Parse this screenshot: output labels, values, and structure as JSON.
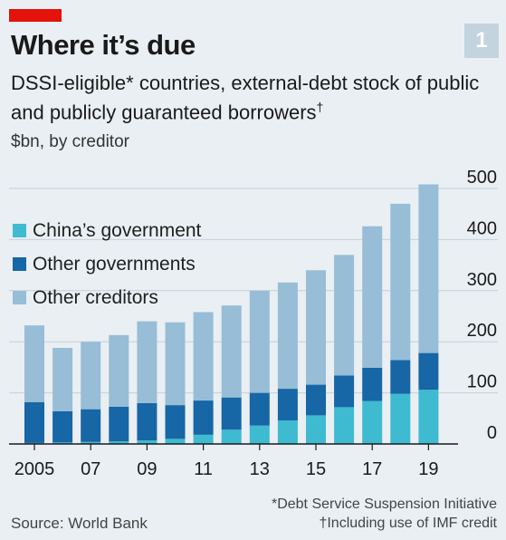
{
  "chart_number": "1",
  "chart_data": {
    "type": "bar",
    "stacked": true,
    "title": "Where it’s due",
    "subtitle": "DSSI-eligible* countries, external-debt stock of public and publicly guaranteed borrowers",
    "subtitle_mark": "†",
    "units": "$bn, by creditor",
    "categories": [
      "2005",
      "2006",
      "2007",
      "2008",
      "2009",
      "2010",
      "2011",
      "2012",
      "2013",
      "2014",
      "2015",
      "2016",
      "2017",
      "2018",
      "2019"
    ],
    "x_tick_labels": [
      "2005",
      "07",
      "09",
      "11",
      "13",
      "15",
      "17",
      "19"
    ],
    "x_tick_years": [
      "2005",
      "2007",
      "2009",
      "2011",
      "2013",
      "2015",
      "2017",
      "2019"
    ],
    "ylim": [
      0,
      500
    ],
    "y_ticks": [
      0,
      100,
      200,
      300,
      400,
      500
    ],
    "y_tick_labels": [
      "0",
      "100",
      "200",
      "300",
      "400",
      "500"
    ],
    "grid": true,
    "legend_position": "top-left",
    "series": [
      {
        "name": "China’s government",
        "color": "#3ebbd0",
        "values": [
          2,
          3,
          4,
          5,
          7,
          10,
          18,
          28,
          36,
          46,
          56,
          72,
          84,
          98,
          106
        ]
      },
      {
        "name": "Other governments",
        "color": "#1766a6",
        "values": [
          80,
          61,
          64,
          68,
          73,
          66,
          67,
          63,
          64,
          62,
          60,
          62,
          65,
          66,
          72
        ]
      },
      {
        "name": "Other creditors",
        "color": "#98bdd6",
        "values": [
          150,
          124,
          132,
          140,
          160,
          162,
          173,
          180,
          200,
          208,
          224,
          236,
          277,
          306,
          330
        ]
      }
    ]
  },
  "footnotes": {
    "dssi": "*Debt Service Suspension Initiative",
    "imf": "†Including use of IMF credit"
  },
  "source": "Source: World Bank"
}
